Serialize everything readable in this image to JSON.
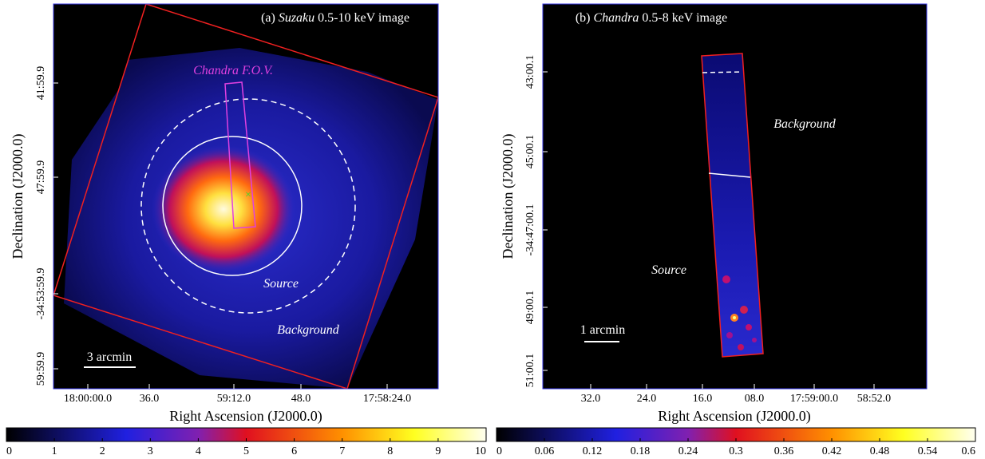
{
  "panels": [
    {
      "title": {
        "prefix": "(a)",
        "mission": "Suzaku",
        "suffix": "0.5-10 keV image"
      },
      "x_label": "Right Ascension (J2000.0)",
      "y_label": "Declination (J2000.0)",
      "x_ticks": [
        "18:00:00.0",
        "36.0",
        "59:12.0",
        "48.0",
        "17:58:24.0"
      ],
      "y_ticks": [
        "41:59.9",
        "47:59.9",
        "-34:53:59.9",
        "59:59.9"
      ],
      "annotations": {
        "fov": "Chandra F.O.V.",
        "source": "Source",
        "background": "Background",
        "scale": "3 arcmin"
      },
      "colorbar_ticks": [
        0,
        1,
        2,
        3,
        4,
        5,
        6,
        7,
        8,
        9,
        10
      ]
    },
    {
      "title": {
        "prefix": "(b)",
        "mission": "Chandra",
        "suffix": "0.5-8 keV image"
      },
      "x_label": "Right Ascension (J2000.0)",
      "y_label": "Declination (J2000.0)",
      "x_ticks": [
        "32.0",
        "24.0",
        "16.0",
        "08.0",
        "17:59:00.0",
        "58:52.0"
      ],
      "y_ticks": [
        "43:00.1",
        "45:00.1",
        "-34:47:00.1",
        "49:00.1",
        "51:00.1"
      ],
      "annotations": {
        "background": "Background",
        "source": "Source",
        "scale": "1 arcmin"
      },
      "colorbar_ticks": [
        0,
        0.06,
        0.12,
        0.18,
        0.24,
        0.3,
        0.36,
        0.42,
        0.48,
        0.54,
        0.6
      ]
    }
  ]
}
